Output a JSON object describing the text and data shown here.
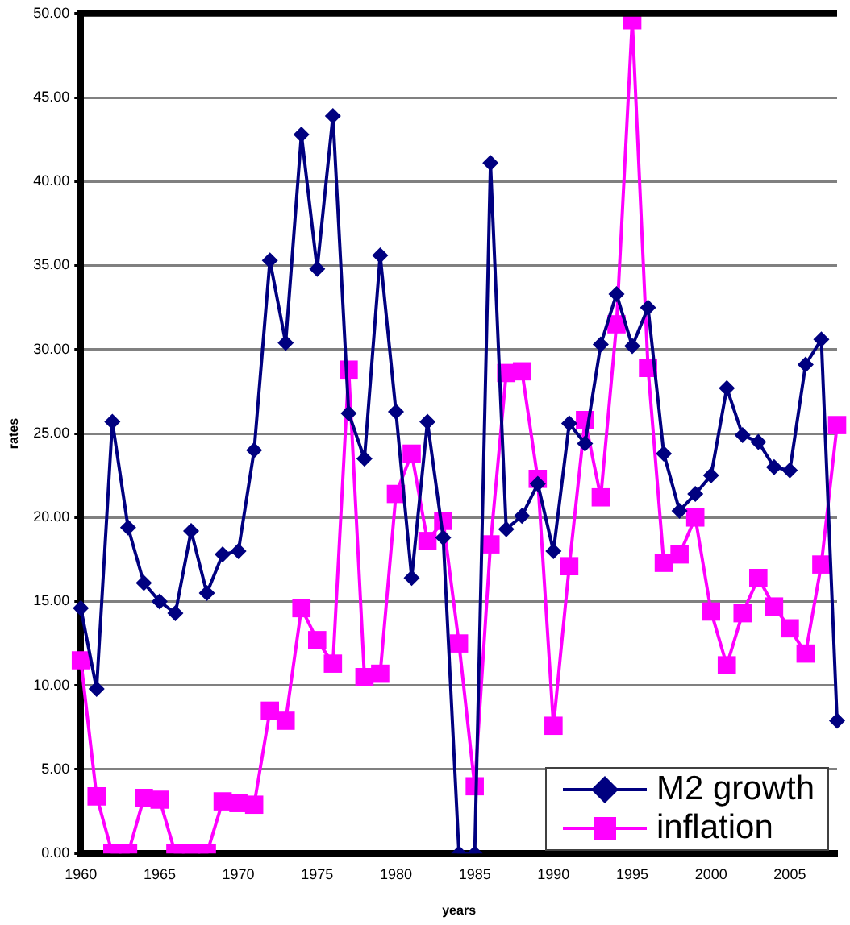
{
  "chart_data": {
    "type": "line",
    "xlabel": "years",
    "ylabel": "rates",
    "categories": [
      "1960",
      null,
      null,
      null,
      null,
      "1965",
      null,
      null,
      null,
      null,
      "1970",
      null,
      null,
      null,
      null,
      "1975",
      null,
      null,
      null,
      null,
      "1980",
      null,
      null,
      null,
      null,
      "1985",
      null,
      null,
      null,
      null,
      "1990",
      null,
      null,
      null,
      null,
      "1995",
      null,
      null,
      null,
      null,
      "2000",
      null,
      null,
      null,
      null,
      "2005",
      null,
      null,
      null
    ],
    "series": [
      {
        "name": "M2 growth",
        "color": "#000080",
        "marker": "diamond",
        "values": [
          14.6,
          9.8,
          25.7,
          19.4,
          16.1,
          15.0,
          14.3,
          19.2,
          15.5,
          17.8,
          18.0,
          24.0,
          35.3,
          30.4,
          42.8,
          34.8,
          43.9,
          26.2,
          23.5,
          35.6,
          26.3,
          16.4,
          25.7,
          18.8,
          0,
          0,
          41.1,
          19.3,
          20.1,
          22.0,
          18.0,
          25.6,
          24.4,
          30.3,
          33.3,
          30.2,
          32.5,
          23.8,
          20.4,
          21.4,
          22.5,
          27.7,
          24.9,
          24.5,
          23.0,
          22.8,
          29.1,
          30.6,
          7.9
        ]
      },
      {
        "name": "inflation",
        "color": "#ff00ff",
        "marker": "square",
        "values": [
          11.5,
          3.4,
          0,
          0,
          3.3,
          3.2,
          0,
          0,
          0,
          3.1,
          3.0,
          2.9,
          8.5,
          7.9,
          14.6,
          12.7,
          11.3,
          28.8,
          10.5,
          10.7,
          21.4,
          23.8,
          18.6,
          19.8,
          12.5,
          4.0,
          18.4,
          28.6,
          28.7,
          22.3,
          7.6,
          17.1,
          25.8,
          21.2,
          31.5,
          49.6,
          28.9,
          17.3,
          17.8,
          20.0,
          14.4,
          11.2,
          14.3,
          16.4,
          14.7,
          13.4,
          11.9,
          17.2,
          25.5
        ]
      }
    ],
    "ylim": [
      0,
      50
    ],
    "yticks": [
      {
        "value": 0,
        "label": "0.00"
      },
      {
        "value": 5,
        "label": "5.00"
      },
      {
        "value": 10,
        "label": "10.00"
      },
      {
        "value": 15,
        "label": "15.00"
      },
      {
        "value": 20,
        "label": "20.00"
      },
      {
        "value": 25,
        "label": "25.00"
      },
      {
        "value": 30,
        "label": "30.00"
      },
      {
        "value": 35,
        "label": "35.00"
      },
      {
        "value": 40,
        "label": "40.00"
      },
      {
        "value": 45,
        "label": "45.00"
      },
      {
        "value": 50,
        "label": "50.00"
      }
    ],
    "grid": "y",
    "legend": "bottom right",
    "line_style": "solid"
  }
}
